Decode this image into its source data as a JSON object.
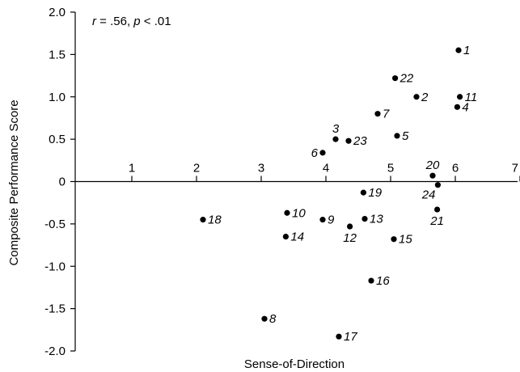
{
  "chart_data": {
    "type": "scatter",
    "title": "",
    "xlabel": "Sense-of-Direction",
    "ylabel": "Composite Performance Score",
    "annotation": {
      "r_symbol": "r",
      "r_value": " = .56, ",
      "p_symbol": "p",
      "p_value": " < .01"
    },
    "xlim": [
      0,
      7
    ],
    "ylim": [
      -2.0,
      2.0
    ],
    "x_ticks": [
      1,
      2,
      3,
      4,
      5,
      6,
      7
    ],
    "x_tick_labels": [
      "1",
      "2",
      "3",
      "4",
      "5",
      "6",
      "7"
    ],
    "y_ticks": [
      2.0,
      1.5,
      1.0,
      0.5,
      0,
      -0.5,
      -1.0,
      -1.5,
      -2.0
    ],
    "y_tick_labels": [
      "2.0",
      "1.5",
      "1.0",
      "0.5",
      "0",
      "-0.5",
      "-1.0",
      "-1.5",
      "-2.0"
    ],
    "grid": false,
    "points": [
      {
        "label": "1",
        "x": 6.05,
        "y": 1.55,
        "pos": "right"
      },
      {
        "label": "22",
        "x": 5.07,
        "y": 1.22,
        "pos": "right"
      },
      {
        "label": "2",
        "x": 5.4,
        "y": 1.0,
        "pos": "right"
      },
      {
        "label": "11",
        "x": 6.07,
        "y": 1.0,
        "pos": "right"
      },
      {
        "label": "4",
        "x": 6.03,
        "y": 0.88,
        "pos": "right"
      },
      {
        "label": "7",
        "x": 4.8,
        "y": 0.8,
        "pos": "right"
      },
      {
        "label": "5",
        "x": 5.1,
        "y": 0.54,
        "pos": "right"
      },
      {
        "label": "3",
        "x": 4.15,
        "y": 0.5,
        "pos": "above"
      },
      {
        "label": "23",
        "x": 4.35,
        "y": 0.48,
        "pos": "right"
      },
      {
        "label": "6",
        "x": 3.95,
        "y": 0.34,
        "pos": "left"
      },
      {
        "label": "20",
        "x": 5.65,
        "y": 0.07,
        "pos": "above"
      },
      {
        "label": "24",
        "x": 5.73,
        "y": -0.04,
        "pos": "below-left"
      },
      {
        "label": "19",
        "x": 4.58,
        "y": -0.13,
        "pos": "right"
      },
      {
        "label": "21",
        "x": 5.72,
        "y": -0.33,
        "pos": "below"
      },
      {
        "label": "10",
        "x": 3.4,
        "y": -0.37,
        "pos": "right"
      },
      {
        "label": "18",
        "x": 2.1,
        "y": -0.45,
        "pos": "right"
      },
      {
        "label": "9",
        "x": 3.95,
        "y": -0.45,
        "pos": "right"
      },
      {
        "label": "13",
        "x": 4.6,
        "y": -0.44,
        "pos": "right"
      },
      {
        "label": "12",
        "x": 4.37,
        "y": -0.53,
        "pos": "below"
      },
      {
        "label": "14",
        "x": 3.38,
        "y": -0.65,
        "pos": "right"
      },
      {
        "label": "15",
        "x": 5.05,
        "y": -0.68,
        "pos": "right"
      },
      {
        "label": "16",
        "x": 4.7,
        "y": -1.17,
        "pos": "right"
      },
      {
        "label": "8",
        "x": 3.05,
        "y": -1.62,
        "pos": "right"
      },
      {
        "label": "17",
        "x": 4.2,
        "y": -1.83,
        "pos": "right"
      }
    ]
  }
}
